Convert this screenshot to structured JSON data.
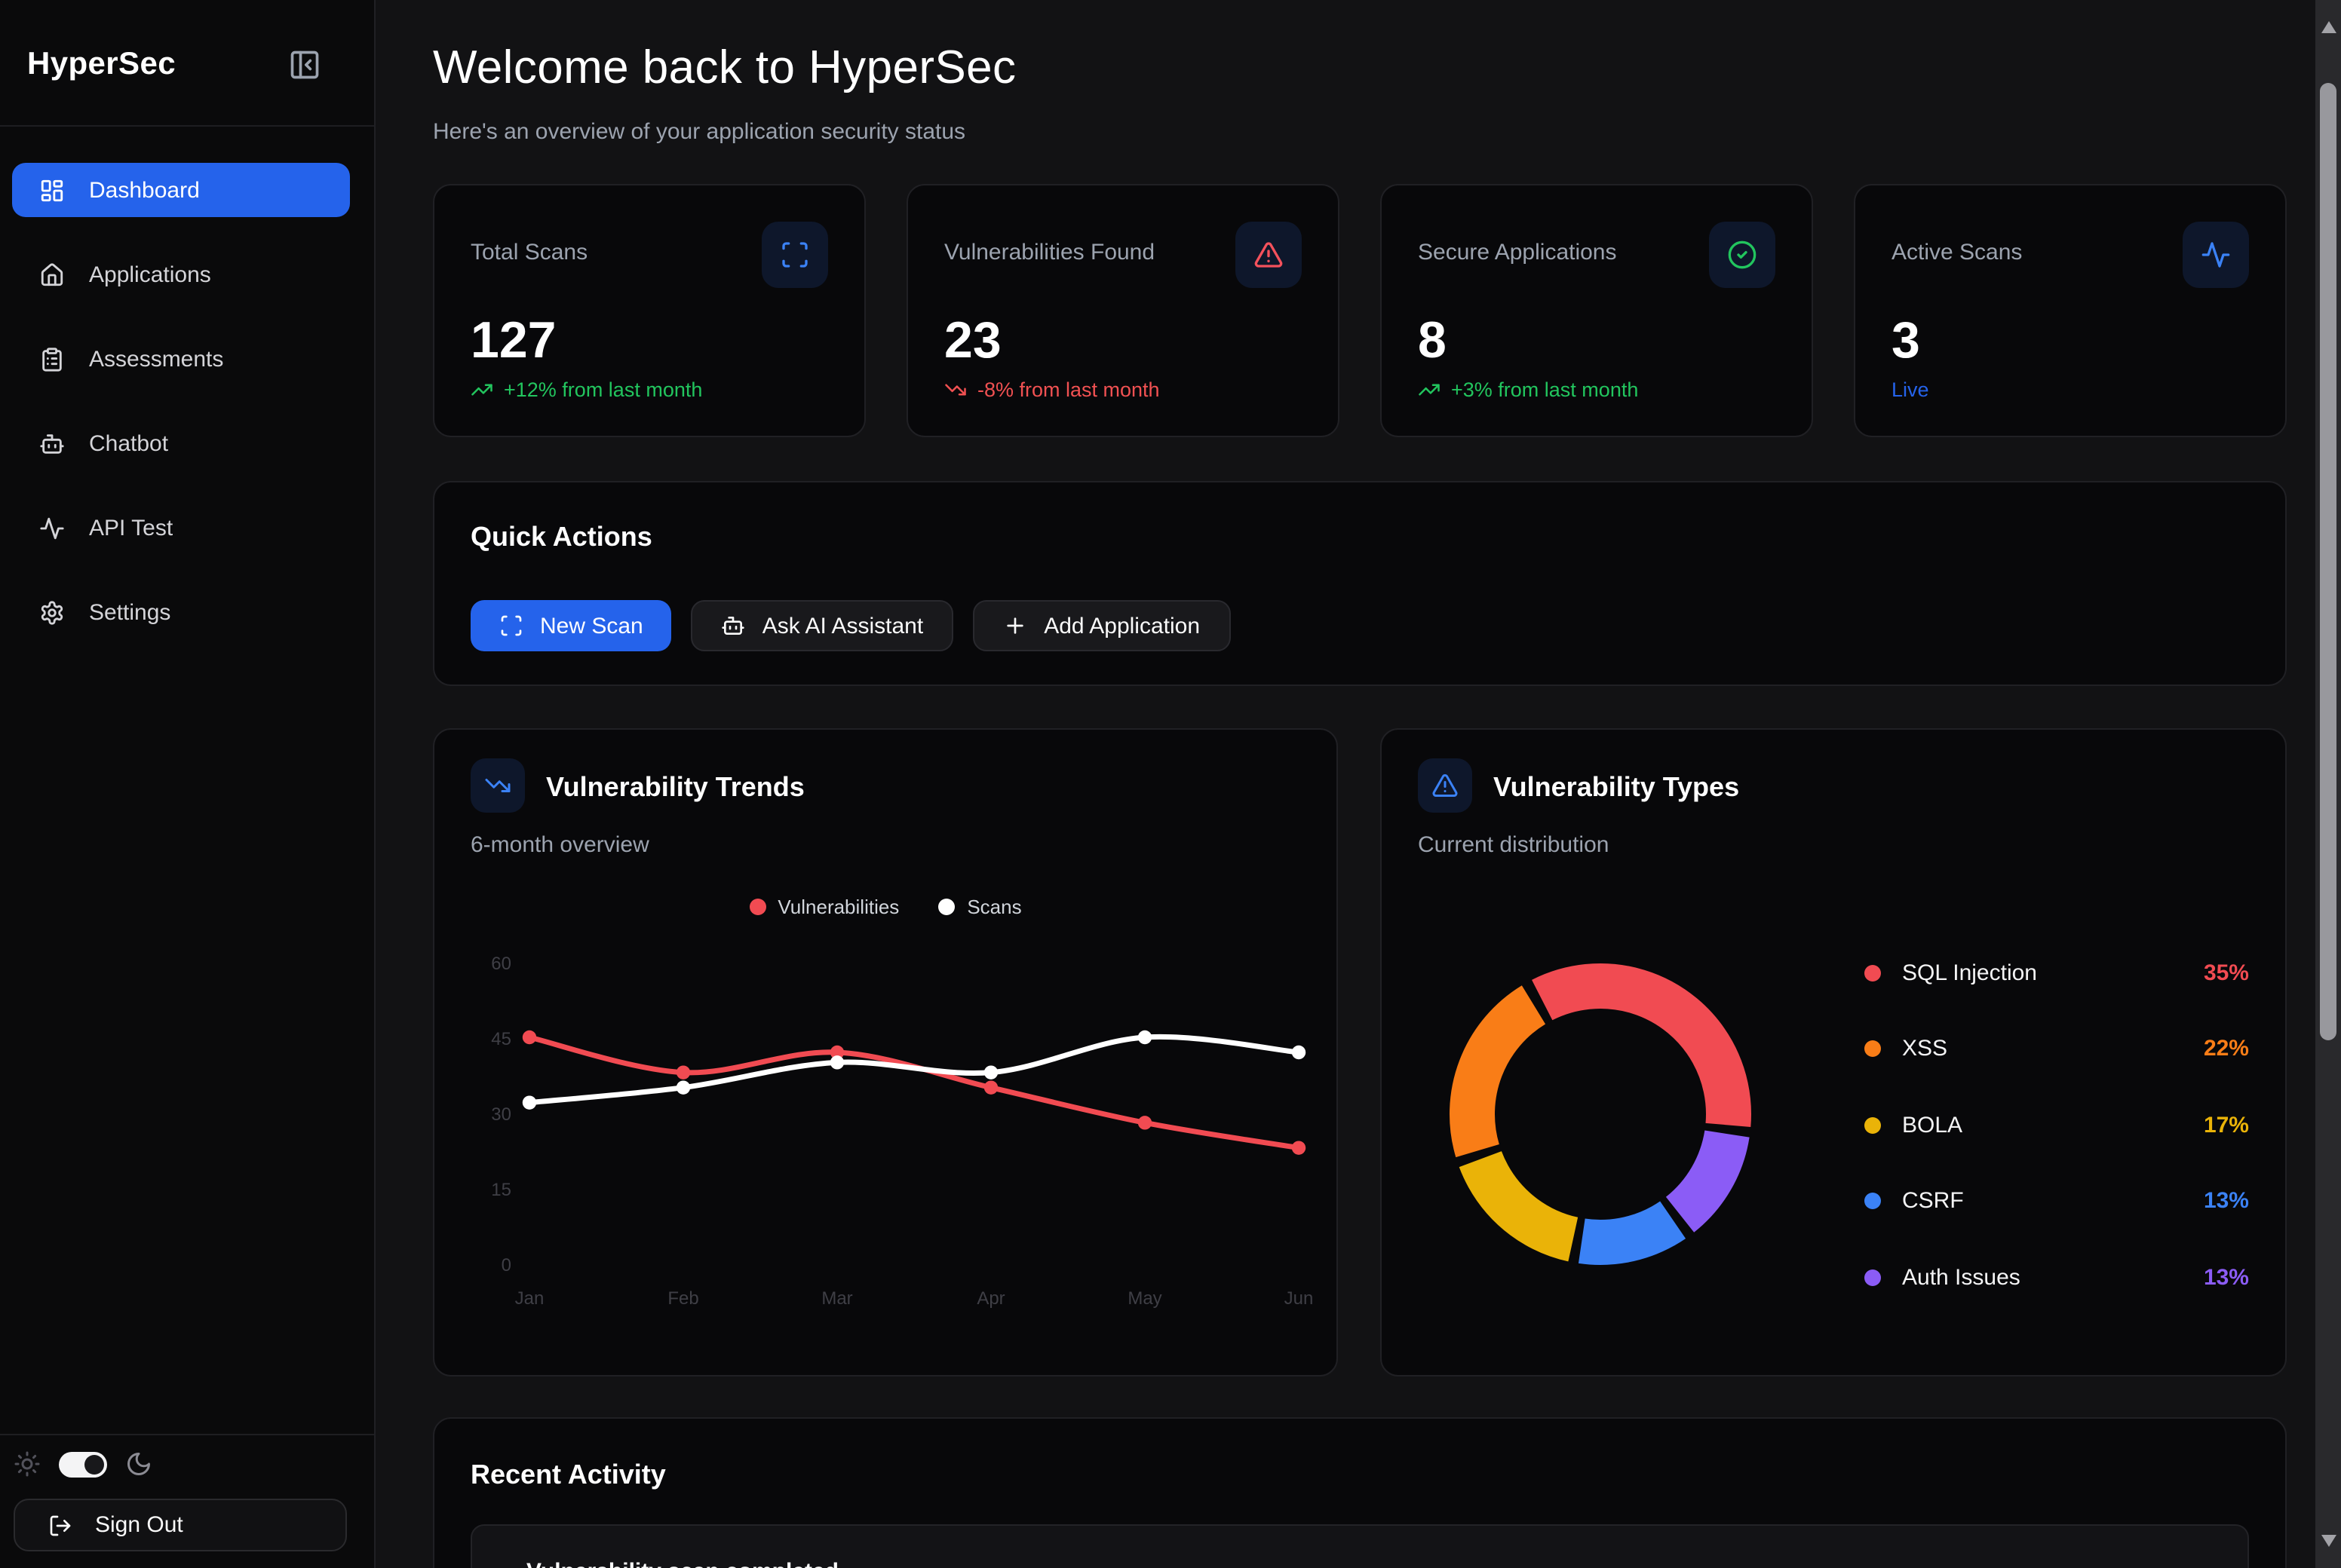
{
  "app": {
    "name": "HyperSec"
  },
  "sidebar": {
    "items": [
      {
        "label": "Dashboard",
        "active": true
      },
      {
        "label": "Applications",
        "active": false
      },
      {
        "label": "Assessments",
        "active": false
      },
      {
        "label": "Chatbot",
        "active": false
      },
      {
        "label": "API Test",
        "active": false
      },
      {
        "label": "Settings",
        "active": false
      }
    ],
    "theme_mode": "dark",
    "sign_out_label": "Sign Out"
  },
  "header": {
    "title": "Welcome back to HyperSec",
    "subtitle": "Here's an overview of your application security status"
  },
  "stats": [
    {
      "label": "Total Scans",
      "value": "127",
      "trend": "+12% from last month",
      "trend_direction": "up",
      "trend_color": "#22c55e",
      "icon": "scan-icon"
    },
    {
      "label": "Vulnerabilities Found",
      "value": "23",
      "trend": "-8% from last month",
      "trend_direction": "down",
      "trend_color": "#f15152",
      "icon": "alert-triangle-icon"
    },
    {
      "label": "Secure Applications",
      "value": "8",
      "trend": "+3% from last month",
      "trend_direction": "up",
      "trend_color": "#22c55e",
      "icon": "check-circle-icon"
    },
    {
      "label": "Active Scans",
      "value": "3",
      "trend": "Live",
      "trend_direction": "none",
      "trend_color": "#2563eb",
      "icon": "activity-icon"
    }
  ],
  "quick_actions": {
    "title": "Quick Actions",
    "buttons": [
      {
        "label": "New Scan",
        "icon": "scan-icon",
        "primary": true
      },
      {
        "label": "Ask AI Assistant",
        "icon": "bot-icon",
        "primary": false
      },
      {
        "label": "Add Application",
        "icon": "plus-icon",
        "primary": false
      }
    ]
  },
  "chart_data": [
    {
      "type": "line",
      "title": "Vulnerability Trends",
      "subtitle": "6-month overview",
      "x": [
        "Jan",
        "Feb",
        "Mar",
        "Apr",
        "May",
        "Jun"
      ],
      "y_ticks": [
        60,
        45,
        30,
        15,
        0
      ],
      "ylim": [
        0,
        60
      ],
      "grid": false,
      "legend_position": "top-center",
      "series": [
        {
          "name": "Vulnerabilities",
          "color": "#f14b52",
          "values": [
            45,
            38,
            42,
            35,
            28,
            23
          ]
        },
        {
          "name": "Scans",
          "color": "#ffffff",
          "values": [
            32,
            35,
            40,
            38,
            45,
            42
          ]
        }
      ]
    },
    {
      "type": "pie",
      "subtype": "donut",
      "title": "Vulnerability Types",
      "subtitle": "Current distribution",
      "rotation_deg": -29,
      "legend_position": "right",
      "segments": [
        {
          "label": "SQL Injection",
          "value": 35,
          "display": "35%",
          "color": "#f14b52"
        },
        {
          "label": "XSS",
          "value": 22,
          "display": "22%",
          "color": "#f97d17"
        },
        {
          "label": "BOLA",
          "value": 17,
          "display": "17%",
          "color": "#eab308"
        },
        {
          "label": "CSRF",
          "value": 13,
          "display": "13%",
          "color": "#3b82f6"
        },
        {
          "label": "Auth Issues",
          "value": 13,
          "display": "13%",
          "color": "#8b5cf6"
        }
      ]
    }
  ],
  "recent_activity": {
    "title": "Recent Activity",
    "items": [
      {
        "text": "Vulnerability scan completed"
      }
    ]
  },
  "colors": {
    "accent": "#2563eb",
    "positive": "#22c55e",
    "negative": "#f15152",
    "icon_blue": "#3b82f6"
  }
}
